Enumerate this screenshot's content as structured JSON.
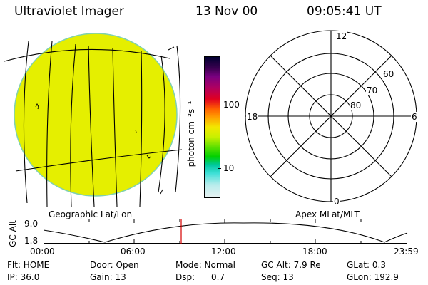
{
  "header": {
    "instrument": "Ultraviolet Imager",
    "date": "13 Nov 00",
    "time": "09:05:41 UT"
  },
  "colors": {
    "earth_fill": "#e5ef00",
    "earth_rim": "#7fd1b0",
    "grid_line": "#000000",
    "time_marker": "#d40000"
  },
  "colorbar": {
    "label": "photon cm⁻²s⁻¹",
    "ticks": [
      "100",
      "10"
    ],
    "gradient": [
      "#000030",
      "#3a0050",
      "#7a0080",
      "#b00060",
      "#e00020",
      "#ff6000",
      "#ffa000",
      "#f2e800",
      "#c8f000",
      "#60e000",
      "#00d000",
      "#00c8a0",
      "#40e0d8",
      "#b8ecec",
      "#e8f2f2"
    ]
  },
  "left_panel": {
    "caption": "Geographic Lat/Lon"
  },
  "right_panel": {
    "caption": "Apex MLat/MLT",
    "mlt_labels": {
      "top": "12",
      "left": "18",
      "right": "6",
      "bottom": "0"
    },
    "mlat_labels": [
      "60",
      "70",
      "80"
    ]
  },
  "altitude_plot": {
    "ylabel": "GC Alt",
    "ymax": "9.0",
    "ymin": "1.8",
    "time_ticks": [
      "00:00",
      "06:00",
      "12:00",
      "18:00",
      "23:59"
    ],
    "marker_time": "09:05"
  },
  "footer": {
    "flt": "Flt: HOME",
    "door": "Door: Open",
    "mode": "Mode: Normal",
    "gc_alt": "GC Alt: 7.9 Re",
    "glat": "GLat:    0.3",
    "ip": "IP: 36.0",
    "gain": "Gain: 13",
    "dsp": "Dsp:      0.7",
    "seq": "Seq: 13",
    "glon": "GLon: 192.9"
  }
}
